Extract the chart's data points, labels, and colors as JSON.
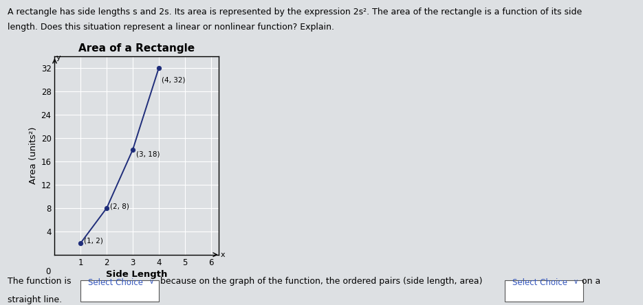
{
  "title": "Area of a Rectangle",
  "xlabel": "Side Length",
  "ylabel": "Area (units²)",
  "points": [
    [
      1,
      2
    ],
    [
      2,
      8
    ],
    [
      3,
      18
    ],
    [
      4,
      32
    ]
  ],
  "point_labels": [
    "(1, 2)",
    "(2, 8)",
    "(3, 18)",
    "(4, 32)"
  ],
  "xlim": [
    0,
    6.3
  ],
  "ylim": [
    0,
    34
  ],
  "xticks": [
    1,
    2,
    3,
    4,
    5,
    6
  ],
  "yticks": [
    4,
    8,
    12,
    16,
    20,
    24,
    28,
    32
  ],
  "line_color": "#1f2d7a",
  "point_color": "#1f2d7a",
  "bg_page": "#dde0e3",
  "bg_plot": "#dde0e3",
  "grid_color": "#ffffff",
  "text_top_line1": "A rectangle has side lengths s and 2s. Its area is represented by the expression 2s². The area of the rectangle is a function of its side",
  "text_top_line2": "length. Does this situation represent a linear or nonlinear function? Explain.",
  "bottom_pre1": "The function is ",
  "bottom_sc1": "Select Choice",
  "bottom_mid": " because on the graph of the function, the ordered pairs (side length, area)",
  "bottom_sc2": "Select Choice",
  "bottom_post": "on a",
  "bottom_line2": "straight line.",
  "select_choice_color": "#3355bb",
  "title_fontsize": 11,
  "axis_label_fontsize": 9.5,
  "tick_fontsize": 8.5,
  "body_fontsize": 9,
  "point_label_fontsize": 7.5
}
